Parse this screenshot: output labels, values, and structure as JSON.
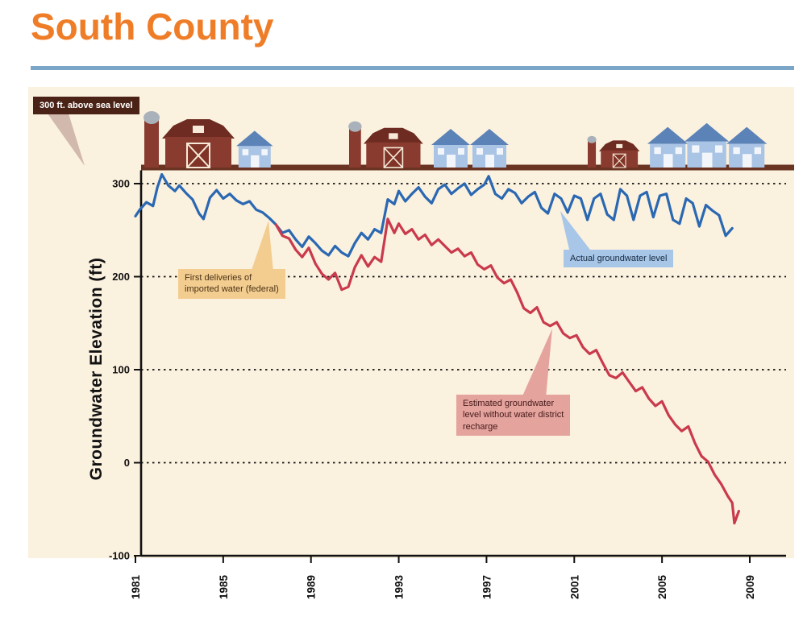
{
  "header": {
    "title": "South County",
    "accent_color": "#ef7d28",
    "rule_color": "#7ba6c8"
  },
  "icons": {
    "barn-icon": "maroon barn with white X door",
    "silo-icon": "maroon silo with gray dome",
    "house-icon": "light blue house with steel-blue roof"
  },
  "chart_data": {
    "type": "line",
    "title": "South County",
    "ylabel": "Groundwater Elevation (ft)",
    "xlabel": "",
    "xlim": [
      1981,
      2009
    ],
    "ylim": [
      -100,
      300
    ],
    "x_ticks": [
      1981,
      1985,
      1989,
      1993,
      1997,
      2001,
      2005,
      2009
    ],
    "y_ticks": [
      300,
      200,
      100,
      0,
      -100
    ],
    "gridlines_ft": [
      300,
      200,
      100,
      0
    ],
    "grid": "horizontal dashed black lines",
    "panel_bg": "#fbf1df",
    "ground": {
      "elevation_ft": 300,
      "color": "#6a3423"
    },
    "legend_position": "inline callouts",
    "series": [
      {
        "id": "actual-groundwater",
        "name": "Actual groundwater level",
        "color": "#2a68b2",
        "points": [
          [
            1981.0,
            265
          ],
          [
            1981.2,
            272
          ],
          [
            1981.5,
            280
          ],
          [
            1981.8,
            276
          ],
          [
            1982.0,
            296
          ],
          [
            1982.2,
            310
          ],
          [
            1982.5,
            298
          ],
          [
            1982.8,
            292
          ],
          [
            1983.0,
            298
          ],
          [
            1983.3,
            290
          ],
          [
            1983.6,
            283
          ],
          [
            1983.9,
            268
          ],
          [
            1984.1,
            262
          ],
          [
            1984.4,
            285
          ],
          [
            1984.7,
            293
          ],
          [
            1985.0,
            284
          ],
          [
            1985.3,
            289
          ],
          [
            1985.6,
            282
          ],
          [
            1985.9,
            278
          ],
          [
            1986.2,
            281
          ],
          [
            1986.5,
            272
          ],
          [
            1986.8,
            269
          ],
          [
            1987.1,
            263
          ],
          [
            1987.4,
            256
          ],
          [
            1987.7,
            247
          ],
          [
            1988.0,
            250
          ],
          [
            1988.3,
            240
          ],
          [
            1988.6,
            232
          ],
          [
            1988.9,
            243
          ],
          [
            1989.2,
            236
          ],
          [
            1989.5,
            228
          ],
          [
            1989.8,
            223
          ],
          [
            1990.1,
            233
          ],
          [
            1990.4,
            226
          ],
          [
            1990.7,
            222
          ],
          [
            1991.0,
            236
          ],
          [
            1991.3,
            247
          ],
          [
            1991.6,
            240
          ],
          [
            1991.9,
            251
          ],
          [
            1992.2,
            247
          ],
          [
            1992.5,
            283
          ],
          [
            1992.8,
            278
          ],
          [
            1993.0,
            292
          ],
          [
            1993.3,
            281
          ],
          [
            1993.6,
            289
          ],
          [
            1993.9,
            296
          ],
          [
            1994.2,
            286
          ],
          [
            1994.5,
            279
          ],
          [
            1994.8,
            294
          ],
          [
            1995.1,
            299
          ],
          [
            1995.4,
            289
          ],
          [
            1995.7,
            295
          ],
          [
            1996.0,
            300
          ],
          [
            1996.3,
            288
          ],
          [
            1996.6,
            294
          ],
          [
            1996.9,
            299
          ],
          [
            1997.1,
            308
          ],
          [
            1997.4,
            289
          ],
          [
            1997.7,
            284
          ],
          [
            1998.0,
            294
          ],
          [
            1998.3,
            290
          ],
          [
            1998.6,
            279
          ],
          [
            1998.9,
            286
          ],
          [
            1999.2,
            291
          ],
          [
            1999.5,
            274
          ],
          [
            1999.8,
            268
          ],
          [
            2000.1,
            289
          ],
          [
            2000.4,
            284
          ],
          [
            2000.7,
            269
          ],
          [
            2001.0,
            287
          ],
          [
            2001.3,
            284
          ],
          [
            2001.6,
            261
          ],
          [
            2001.9,
            284
          ],
          [
            2002.2,
            289
          ],
          [
            2002.5,
            267
          ],
          [
            2002.8,
            261
          ],
          [
            2003.1,
            294
          ],
          [
            2003.4,
            287
          ],
          [
            2003.7,
            261
          ],
          [
            2004.0,
            287
          ],
          [
            2004.3,
            291
          ],
          [
            2004.6,
            264
          ],
          [
            2004.9,
            287
          ],
          [
            2005.2,
            289
          ],
          [
            2005.5,
            261
          ],
          [
            2005.8,
            257
          ],
          [
            2006.1,
            284
          ],
          [
            2006.4,
            279
          ],
          [
            2006.7,
            254
          ],
          [
            2007.0,
            277
          ],
          [
            2007.3,
            271
          ],
          [
            2007.6,
            266
          ],
          [
            2007.9,
            244
          ],
          [
            2008.2,
            252
          ]
        ]
      },
      {
        "id": "estimated-groundwater",
        "name": "Estimated groundwater level without water district recharge",
        "color": "#c93a4c",
        "points": [
          [
            1987.4,
            256
          ],
          [
            1987.7,
            244
          ],
          [
            1988.0,
            241
          ],
          [
            1988.3,
            229
          ],
          [
            1988.6,
            221
          ],
          [
            1988.9,
            231
          ],
          [
            1989.2,
            214
          ],
          [
            1989.5,
            203
          ],
          [
            1989.8,
            197
          ],
          [
            1990.1,
            204
          ],
          [
            1990.4,
            186
          ],
          [
            1990.7,
            189
          ],
          [
            1991.0,
            210
          ],
          [
            1991.3,
            223
          ],
          [
            1991.6,
            211
          ],
          [
            1991.9,
            221
          ],
          [
            1992.2,
            216
          ],
          [
            1992.5,
            262
          ],
          [
            1992.8,
            247
          ],
          [
            1993.0,
            257
          ],
          [
            1993.3,
            246
          ],
          [
            1993.6,
            251
          ],
          [
            1993.9,
            240
          ],
          [
            1994.2,
            245
          ],
          [
            1994.5,
            234
          ],
          [
            1994.8,
            240
          ],
          [
            1995.1,
            233
          ],
          [
            1995.4,
            226
          ],
          [
            1995.7,
            230
          ],
          [
            1996.0,
            222
          ],
          [
            1996.3,
            226
          ],
          [
            1996.6,
            213
          ],
          [
            1996.9,
            208
          ],
          [
            1997.2,
            212
          ],
          [
            1997.5,
            199
          ],
          [
            1997.8,
            193
          ],
          [
            1998.1,
            197
          ],
          [
            1998.4,
            183
          ],
          [
            1998.7,
            166
          ],
          [
            1999.0,
            161
          ],
          [
            1999.3,
            167
          ],
          [
            1999.6,
            151
          ],
          [
            1999.9,
            147
          ],
          [
            2000.2,
            151
          ],
          [
            2000.5,
            139
          ],
          [
            2000.8,
            134
          ],
          [
            2001.1,
            137
          ],
          [
            2001.4,
            124
          ],
          [
            2001.7,
            117
          ],
          [
            2002.0,
            121
          ],
          [
            2002.3,
            107
          ],
          [
            2002.6,
            94
          ],
          [
            2002.9,
            91
          ],
          [
            2003.2,
            97
          ],
          [
            2003.5,
            87
          ],
          [
            2003.8,
            77
          ],
          [
            2004.1,
            81
          ],
          [
            2004.4,
            69
          ],
          [
            2004.7,
            61
          ],
          [
            2005.0,
            66
          ],
          [
            2005.3,
            51
          ],
          [
            2005.6,
            41
          ],
          [
            2005.9,
            34
          ],
          [
            2006.2,
            39
          ],
          [
            2006.5,
            21
          ],
          [
            2006.8,
            7
          ],
          [
            2007.1,
            1
          ],
          [
            2007.4,
            -13
          ],
          [
            2007.7,
            -23
          ],
          [
            2008.0,
            -36
          ],
          [
            2008.2,
            -43
          ],
          [
            2008.3,
            -65
          ],
          [
            2008.5,
            -52
          ]
        ]
      }
    ],
    "annotations": {
      "sea_level": {
        "text": "300 ft. above sea level",
        "bg": "#4a2316"
      },
      "imported_water": {
        "text": "First deliveries of\nimported water (federal)",
        "bg": "#f3cd90"
      },
      "actual": {
        "text": "Actual groundwater level",
        "bg": "#a7c6e8"
      },
      "estimated": {
        "text": "Estimated groundwater\nlevel without water district\nrecharge",
        "bg": "#e5a39e"
      }
    }
  }
}
